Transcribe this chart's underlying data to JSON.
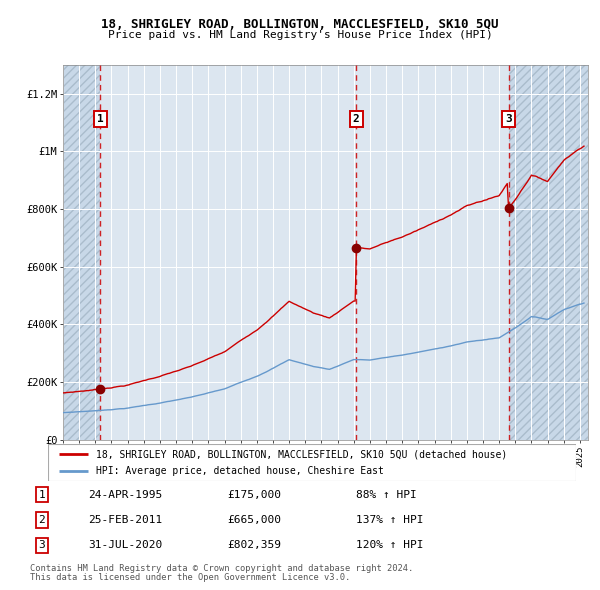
{
  "title1": "18, SHRIGLEY ROAD, BOLLINGTON, MACCLESFIELD, SK10 5QU",
  "title2": "Price paid vs. HM Land Registry's House Price Index (HPI)",
  "legend_line1": "18, SHRIGLEY ROAD, BOLLINGTON, MACCLESFIELD, SK10 5QU (detached house)",
  "legend_line2": "HPI: Average price, detached house, Cheshire East",
  "sale1_date": "24-APR-1995",
  "sale1_price": 175000,
  "sale1_pct": "88% ↑ HPI",
  "sale2_date": "25-FEB-2011",
  "sale2_price": 665000,
  "sale2_pct": "137% ↑ HPI",
  "sale3_date": "31-JUL-2020",
  "sale3_price": 802359,
  "sale3_pct": "120% ↑ HPI",
  "footer1": "Contains HM Land Registry data © Crown copyright and database right 2024.",
  "footer2": "This data is licensed under the Open Government Licence v3.0.",
  "red_color": "#cc0000",
  "blue_color": "#6699cc",
  "bg_color": "#dce6f0",
  "hatch_color": "#c8d8e8",
  "grid_color": "#ffffff",
  "sale_marker_color": "#880000",
  "ylim_max": 1300000,
  "ylim_min": 0,
  "xmin": 1993.0,
  "xmax": 2025.5,
  "sale1_x": 1995.31,
  "sale2_x": 2011.14,
  "sale3_x": 2020.58,
  "yticks": [
    0,
    200000,
    400000,
    600000,
    800000,
    1000000,
    1200000
  ],
  "ylabels": [
    "£0",
    "£200K",
    "£400K",
    "£600K",
    "£800K",
    "£1M",
    "£1.2M"
  ]
}
